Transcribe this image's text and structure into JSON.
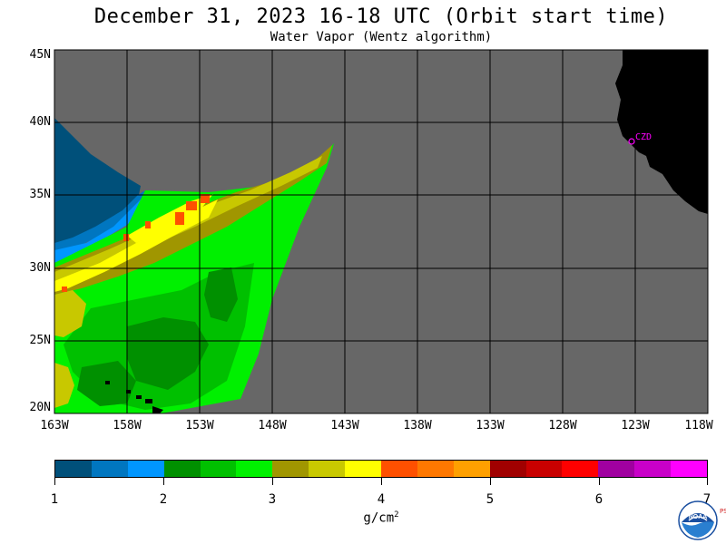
{
  "header": {
    "title": "December 31, 2023  16-18 UTC  (Orbit start time)",
    "subtitle": "Water Vapor (Wentz algorithm)"
  },
  "map": {
    "lat_labels": [
      "45N",
      "40N",
      "35N",
      "30N",
      "25N",
      "20N"
    ],
    "lon_labels": [
      "163W",
      "158W",
      "153W",
      "148W",
      "143W",
      "138W",
      "133W",
      "128W",
      "123W",
      "118W"
    ],
    "station_label": "CZD",
    "colors": {
      "no_data": "#676767",
      "land": "#000000",
      "grid": "#000000",
      "station": "#ff00ff"
    }
  },
  "colorbar": {
    "colors": [
      "#00507a",
      "#0076c0",
      "#0096ff",
      "#009000",
      "#00c000",
      "#00f000",
      "#a09600",
      "#c8c800",
      "#ffff00",
      "#ff5000",
      "#ff7800",
      "#ffa000",
      "#a00000",
      "#c80000",
      "#ff0000",
      "#a000a0",
      "#c800c8",
      "#ff00ff"
    ],
    "tick_labels": [
      "1",
      "2",
      "3",
      "4",
      "5",
      "6",
      "7"
    ],
    "unit": "g/cm",
    "unit_exp": "2"
  },
  "logo": {
    "name": "NOAA",
    "side_text": "PSL"
  }
}
